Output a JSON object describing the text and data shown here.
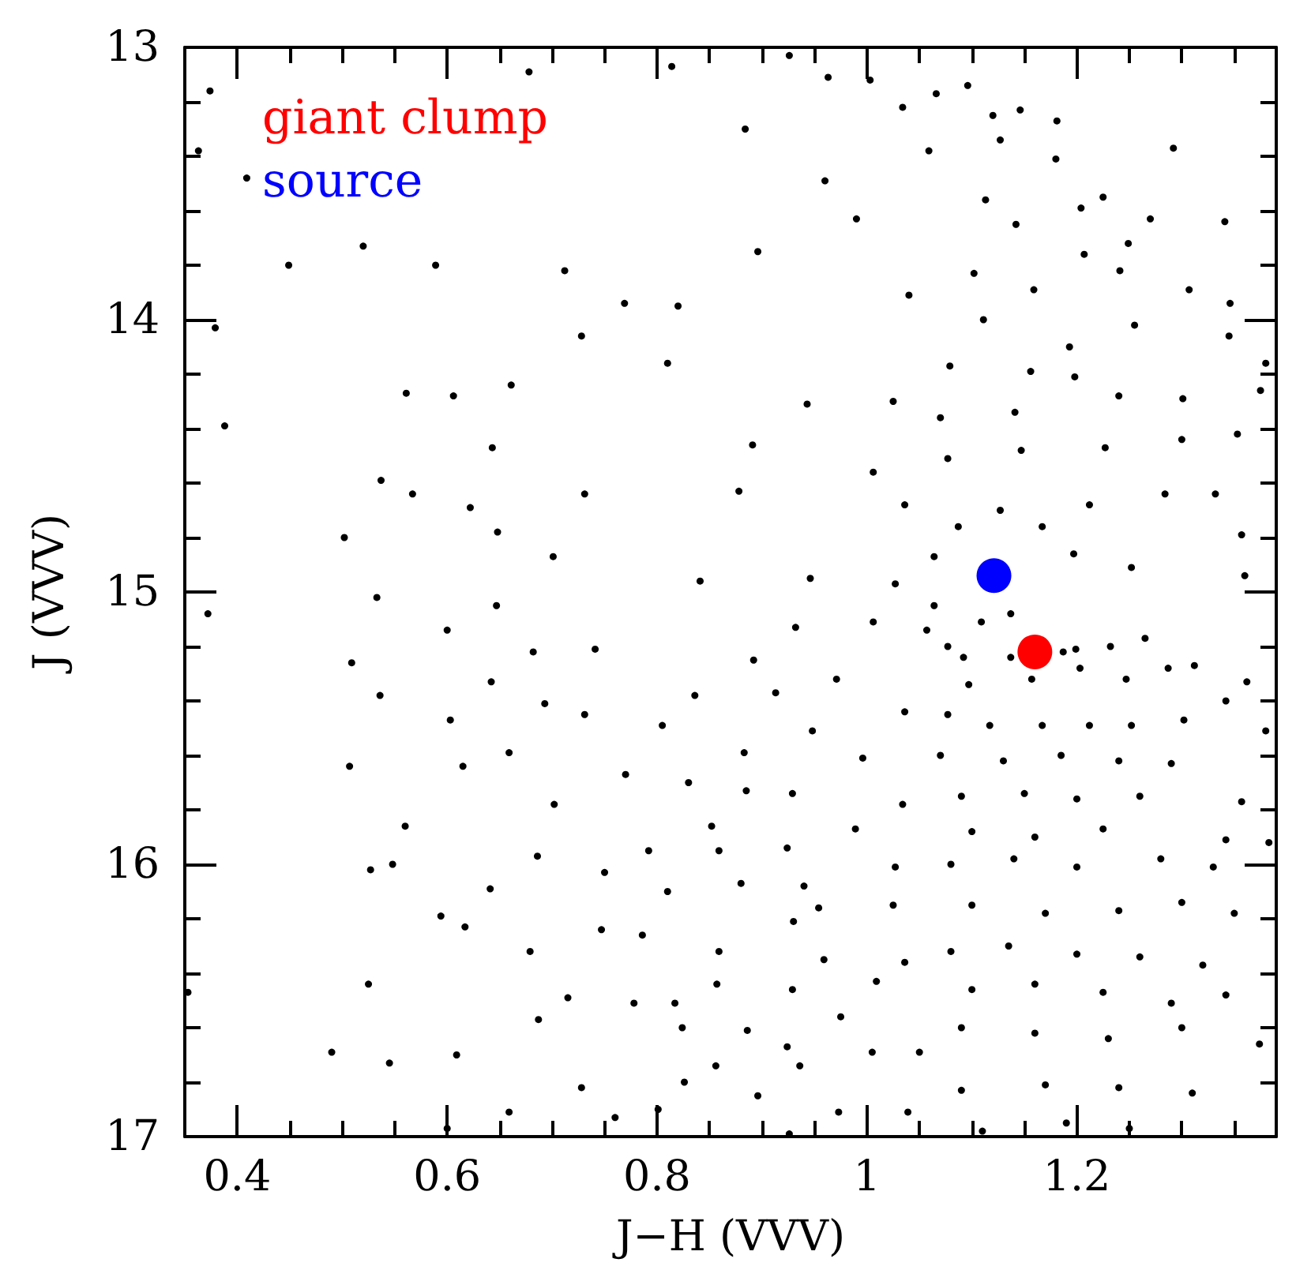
{
  "chart_data": {
    "type": "scatter",
    "xlabel": "J−H (VVV)",
    "ylabel": "J (VVV)",
    "legend": "top left",
    "marker": "circle",
    "xlim": [
      0.35,
      1.39
    ],
    "ylim": [
      17,
      13
    ],
    "xticks": [
      0.4,
      {
        "value": 0.45,
        "label": null
      },
      {
        "value": 0.5,
        "label": null
      },
      {
        "value": 0.55,
        "label": null
      },
      0.6,
      {
        "value": 0.65,
        "label": null
      },
      {
        "value": 0.7,
        "label": null
      },
      {
        "value": 0.75,
        "label": null
      },
      0.8,
      {
        "value": 0.85,
        "label": null
      },
      {
        "value": 0.9,
        "label": null
      },
      {
        "value": 0.95,
        "label": null
      },
      1,
      {
        "value": 1.05,
        "label": null
      },
      {
        "value": 1.1,
        "label": null
      },
      {
        "value": 1.15,
        "label": null
      },
      1.2,
      {
        "value": 1.25,
        "label": null
      },
      {
        "value": 1.3,
        "label": null
      },
      {
        "value": 1.35,
        "label": null
      }
    ],
    "yticks": [
      13,
      {
        "value": 13.2,
        "label": null
      },
      {
        "value": 13.4,
        "label": null
      },
      {
        "value": 13.6,
        "label": null
      },
      {
        "value": 13.8,
        "label": null
      },
      14,
      {
        "value": 14.2,
        "label": null
      },
      {
        "value": 14.4,
        "label": null
      },
      {
        "value": 14.6,
        "label": null
      },
      {
        "value": 14.8,
        "label": null
      },
      15,
      {
        "value": 15.2,
        "label": null
      },
      {
        "value": 15.4,
        "label": null
      },
      {
        "value": 15.6,
        "label": null
      },
      {
        "value": 15.8,
        "label": null
      },
      16,
      {
        "value": 16.2,
        "label": null
      },
      {
        "value": 16.4,
        "label": null
      },
      {
        "value": 16.6,
        "label": null
      },
      {
        "value": 16.8,
        "label": null
      },
      17
    ],
    "series": [
      {
        "color": "#000000",
        "x": [
          0.374,
          0.363,
          0.409,
          0.449,
          0.678,
          0.712,
          0.52,
          0.589,
          0.769,
          0.379,
          0.388,
          0.561,
          0.606,
          0.643,
          0.661,
          0.728,
          0.537,
          0.567,
          0.622,
          0.648,
          0.731,
          0.502,
          0.701,
          0.533,
          0.814,
          0.884,
          0.926,
          0.963,
          0.96,
          1.003,
          1.034,
          1.066,
          1.096,
          1.059,
          1.12,
          1.146,
          1.181,
          1.127,
          1.18,
          1.225,
          1.292,
          0.99,
          0.896,
          0.82,
          0.81,
          1.113,
          1.142,
          1.204,
          1.27,
          1.341,
          1.249,
          1.207,
          1.102,
          1.04,
          1.159,
          1.241,
          1.307,
          1.346,
          1.111,
          1.193,
          1.255,
          1.345,
          1.38,
          1.079,
          1.156,
          0.943,
          1.025,
          1.07,
          1.141,
          1.198,
          1.24,
          1.301,
          1.375,
          1.3,
          1.353,
          1.036,
          1.077,
          1.147,
          1.227,
          1.284,
          1.332,
          1.357,
          1.212,
          1.127,
          1.087,
          1.064,
          1.167,
          1.197,
          1.252,
          1.027,
          0.946,
          0.891,
          0.878,
          0.841,
          1.006,
          1.36,
          0.372,
          0.509,
          0.536,
          0.507,
          0.6,
          0.647,
          0.682,
          0.741,
          0.642,
          0.693,
          0.603,
          0.659,
          0.731,
          0.77,
          0.615,
          0.56,
          0.702,
          0.527,
          0.548,
          0.686,
          0.641,
          0.594,
          0.75,
          0.617,
          0.679,
          0.747,
          0.525,
          0.353,
          0.715,
          0.687,
          0.778,
          0.49,
          0.545,
          0.609,
          0.728,
          0.659,
          0.76,
          0.6,
          0.932,
          1.006,
          0.892,
          0.836,
          0.913,
          0.805,
          0.971,
          1.036,
          0.883,
          0.948,
          0.996,
          0.83,
          0.885,
          0.852,
          0.929,
          0.989,
          1.034,
          0.792,
          0.859,
          0.924,
          1.027,
          0.81,
          0.88,
          0.94,
          0.954,
          1.025,
          0.93,
          0.786,
          0.859,
          0.959,
          1.036,
          0.817,
          0.857,
          0.929,
          0.975,
          1.009,
          0.824,
          0.886,
          0.924,
          1.005,
          1.05,
          0.856,
          0.936,
          0.826,
          0.896,
          0.973,
          1.039,
          0.801,
          0.926,
          1.064,
          1.057,
          1.077,
          1.109,
          1.137,
          1.092,
          1.137,
          1.187,
          1.199,
          1.232,
          1.265,
          1.287,
          1.312,
          1.342,
          1.362,
          1.097,
          1.157,
          1.203,
          1.247,
          1.077,
          1.117,
          1.167,
          1.212,
          1.252,
          1.302,
          1.38,
          1.07,
          1.13,
          1.185,
          1.24,
          1.29,
          1.09,
          1.15,
          1.2,
          1.26,
          1.357,
          1.342,
          1.383,
          1.1,
          1.16,
          1.225,
          1.08,
          1.14,
          1.2,
          1.28,
          1.33,
          1.1,
          1.17,
          1.24,
          1.3,
          1.35,
          1.08,
          1.135,
          1.2,
          1.26,
          1.32,
          1.342,
          1.1,
          1.16,
          1.225,
          1.29,
          1.374,
          1.09,
          1.16,
          1.23,
          1.3,
          1.09,
          1.17,
          1.24,
          1.31,
          1.11,
          1.19,
          1.25
        ],
        "values": [
          13.16,
          13.38,
          13.48,
          13.8,
          13.09,
          13.82,
          13.73,
          13.8,
          13.94,
          14.03,
          14.39,
          14.27,
          14.28,
          14.47,
          14.24,
          14.06,
          14.59,
          14.64,
          14.69,
          14.78,
          14.64,
          14.8,
          14.87,
          15.02,
          13.07,
          13.3,
          13.03,
          13.11,
          13.49,
          13.12,
          13.22,
          13.17,
          13.14,
          13.38,
          13.25,
          13.23,
          13.27,
          13.34,
          13.41,
          13.55,
          13.37,
          13.63,
          13.75,
          13.95,
          14.16,
          13.56,
          13.65,
          13.59,
          13.63,
          13.64,
          13.72,
          13.76,
          13.83,
          13.91,
          13.89,
          13.82,
          13.89,
          13.94,
          14.0,
          14.1,
          14.02,
          14.06,
          14.16,
          14.17,
          14.19,
          14.31,
          14.3,
          14.36,
          14.34,
          14.21,
          14.28,
          14.29,
          14.26,
          14.44,
          14.42,
          14.68,
          14.51,
          14.48,
          14.47,
          14.64,
          14.64,
          14.79,
          14.68,
          14.7,
          14.76,
          14.87,
          14.76,
          14.86,
          14.91,
          14.97,
          14.95,
          14.46,
          14.63,
          14.96,
          14.56,
          14.94,
          15.08,
          15.26,
          15.38,
          15.64,
          15.14,
          15.05,
          15.22,
          15.21,
          15.33,
          15.41,
          15.47,
          15.59,
          15.45,
          15.67,
          15.64,
          15.86,
          15.78,
          16.02,
          16.0,
          15.97,
          16.09,
          16.19,
          16.03,
          16.23,
          16.32,
          16.24,
          16.44,
          16.47,
          16.49,
          16.57,
          16.51,
          16.69,
          16.73,
          16.7,
          16.82,
          16.91,
          16.93,
          16.97,
          15.13,
          15.11,
          15.25,
          15.38,
          15.37,
          15.49,
          15.32,
          15.44,
          15.59,
          15.51,
          15.61,
          15.7,
          15.73,
          15.86,
          15.74,
          15.87,
          15.78,
          15.95,
          15.95,
          15.94,
          16.01,
          16.1,
          16.07,
          16.08,
          16.16,
          16.15,
          16.21,
          16.26,
          16.32,
          16.35,
          16.36,
          16.51,
          16.44,
          16.46,
          16.56,
          16.43,
          16.6,
          16.61,
          16.67,
          16.69,
          16.69,
          16.74,
          16.74,
          16.8,
          16.85,
          16.91,
          16.91,
          16.9,
          16.99,
          15.05,
          15.14,
          15.2,
          15.11,
          15.08,
          15.24,
          15.24,
          15.22,
          15.21,
          15.2,
          15.17,
          15.28,
          15.27,
          15.4,
          15.33,
          15.34,
          15.32,
          15.28,
          15.32,
          15.45,
          15.49,
          15.49,
          15.49,
          15.49,
          15.47,
          15.51,
          15.6,
          15.62,
          15.6,
          15.62,
          15.63,
          15.75,
          15.74,
          15.76,
          15.75,
          15.77,
          15.91,
          15.92,
          15.88,
          15.9,
          15.87,
          16.0,
          15.98,
          16.01,
          15.98,
          16.01,
          16.15,
          16.18,
          16.17,
          16.14,
          16.18,
          16.32,
          16.3,
          16.33,
          16.34,
          16.37,
          16.48,
          16.46,
          16.44,
          16.47,
          16.51,
          16.66,
          16.6,
          16.62,
          16.64,
          16.6,
          16.83,
          16.81,
          16.82,
          16.84,
          16.98,
          16.95,
          16.97
        ]
      },
      {
        "name": "giant clump",
        "color": "#ff0000",
        "x": [
          1.16
        ],
        "values": [
          15.22
        ]
      },
      {
        "name": "source",
        "color": "#0000ff",
        "x": [
          1.121
        ],
        "values": [
          14.94
        ]
      }
    ]
  }
}
